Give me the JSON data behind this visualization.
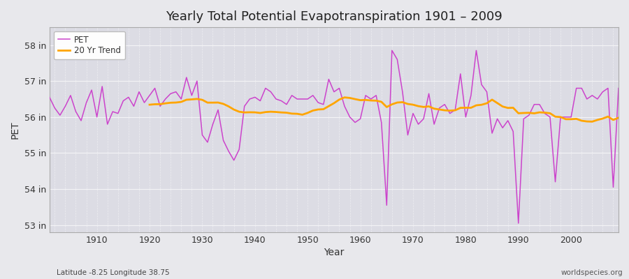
{
  "title": "Yearly Total Potential Evapotranspiration 1901 – 2009",
  "ylabel": "PET",
  "xlabel": "Year",
  "subtitle_left": "Latitude -8.25 Longitude 38.75",
  "subtitle_right": "worldspecies.org",
  "pet_color": "#CC44CC",
  "trend_color": "#FFA500",
  "fig_bg_color": "#E8E8EC",
  "plot_bg_color": "#DCDCE4",
  "ylim_min": 52.8,
  "ylim_max": 58.5,
  "ytick_labels": [
    "53 in",
    "54 in",
    "55 in",
    "56 in",
    "57 in",
    "58 in"
  ],
  "ytick_values": [
    53,
    54,
    55,
    56,
    57,
    58
  ],
  "years": [
    1901,
    1902,
    1903,
    1904,
    1905,
    1906,
    1907,
    1908,
    1909,
    1910,
    1911,
    1912,
    1913,
    1914,
    1915,
    1916,
    1917,
    1918,
    1919,
    1920,
    1921,
    1922,
    1923,
    1924,
    1925,
    1926,
    1927,
    1928,
    1929,
    1930,
    1931,
    1932,
    1933,
    1934,
    1935,
    1936,
    1937,
    1938,
    1939,
    1940,
    1941,
    1942,
    1943,
    1944,
    1945,
    1946,
    1947,
    1948,
    1949,
    1950,
    1951,
    1952,
    1953,
    1954,
    1955,
    1956,
    1957,
    1958,
    1959,
    1960,
    1961,
    1962,
    1963,
    1964,
    1965,
    1966,
    1967,
    1968,
    1969,
    1970,
    1971,
    1972,
    1973,
    1974,
    1975,
    1976,
    1977,
    1978,
    1979,
    1980,
    1981,
    1982,
    1983,
    1984,
    1985,
    1986,
    1987,
    1988,
    1989,
    1990,
    1991,
    1992,
    1993,
    1994,
    1995,
    1996,
    1997,
    1998,
    1999,
    2000,
    2001,
    2002,
    2003,
    2004,
    2005,
    2006,
    2007,
    2008,
    2009
  ],
  "pet_values": [
    56.55,
    56.25,
    56.05,
    56.3,
    56.6,
    56.15,
    55.9,
    56.4,
    56.75,
    56.0,
    56.85,
    55.8,
    56.15,
    56.1,
    56.45,
    56.55,
    56.3,
    56.7,
    56.4,
    56.6,
    56.8,
    56.3,
    56.5,
    56.65,
    56.7,
    56.5,
    57.1,
    56.6,
    57.0,
    55.5,
    55.3,
    55.8,
    56.2,
    55.35,
    55.05,
    54.8,
    55.1,
    56.3,
    56.5,
    56.55,
    56.45,
    56.8,
    56.7,
    56.5,
    56.45,
    56.35,
    56.6,
    56.5,
    56.5,
    56.5,
    56.6,
    56.4,
    56.35,
    57.05,
    56.7,
    56.8,
    56.3,
    56.0,
    55.85,
    55.95,
    56.6,
    56.5,
    56.6,
    55.85,
    53.55,
    57.85,
    57.6,
    56.7,
    55.5,
    56.1,
    55.8,
    55.95,
    56.65,
    55.8,
    56.25,
    56.35,
    56.1,
    56.2,
    57.2,
    56.0,
    56.6,
    57.85,
    56.9,
    56.7,
    55.55,
    55.95,
    55.7,
    55.9,
    55.6,
    53.05,
    55.95,
    56.05,
    56.35,
    56.35,
    56.1,
    56.0,
    54.2,
    56.0,
    56.0,
    56.0,
    56.8,
    56.8,
    56.5,
    56.6,
    56.5,
    56.7,
    56.8,
    54.05,
    56.8
  ]
}
